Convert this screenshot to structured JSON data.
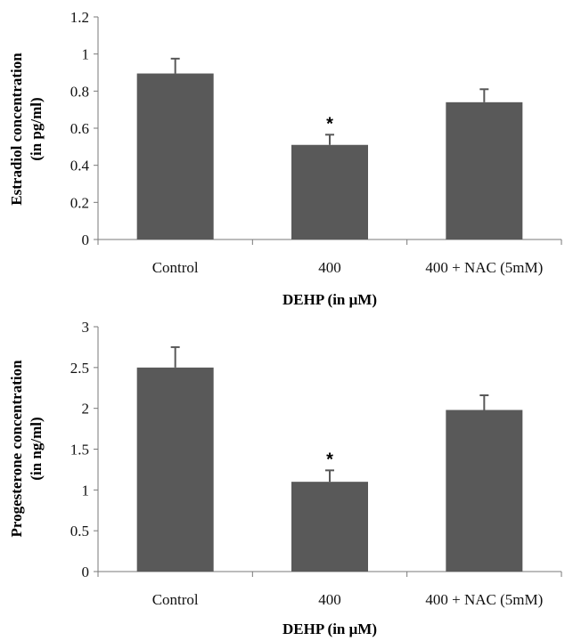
{
  "chart_data": [
    {
      "type": "bar",
      "categories": [
        "Control",
        "400",
        "400 + NAC (5mM)"
      ],
      "values": [
        0.895,
        0.51,
        0.74
      ],
      "errors": [
        0.08,
        0.055,
        0.07
      ],
      "annotations": [
        "",
        "*",
        ""
      ],
      "yticks": [
        "0",
        "0.2",
        "0.4",
        "0.6",
        "0.8",
        "1",
        "1.2"
      ],
      "ylim": [
        0,
        1.2
      ],
      "ylabel_line1": "Estradiol concentration",
      "ylabel_line2": "(in pg/ml)",
      "xlabel": "DEHP (in μM)",
      "bar_color": "#595959",
      "grid": false,
      "legend": "none"
    },
    {
      "type": "bar",
      "categories": [
        "Control",
        "400",
        "400 + NAC (5mM)"
      ],
      "values": [
        2.5,
        1.1,
        1.98
      ],
      "errors": [
        0.25,
        0.14,
        0.18
      ],
      "annotations": [
        "",
        "*",
        ""
      ],
      "yticks": [
        "0",
        "0.5",
        "1",
        "1.5",
        "2",
        "2.5",
        "3"
      ],
      "ylim": [
        0,
        3
      ],
      "ylabel_line1": "Progesterone concentration",
      "ylabel_line2": "(in ng/ml)",
      "xlabel": "DEHP (in μM)",
      "bar_color": "#595959",
      "grid": false,
      "legend": "none"
    }
  ]
}
